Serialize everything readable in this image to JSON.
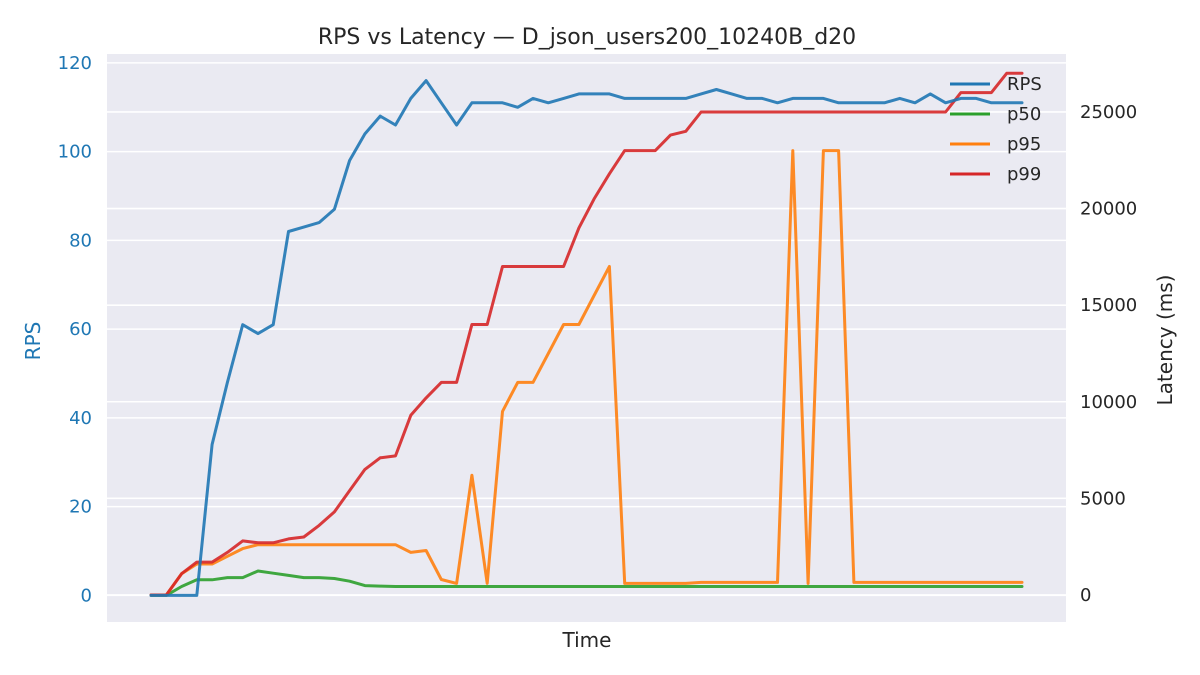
{
  "chart_data": {
    "type": "line",
    "title": "RPS vs Latency — D_json_users200_10240B_d20",
    "xlabel": "Time",
    "ylabel_left": "RPS",
    "ylabel_right": "Latency (ms)",
    "ylim_left": [
      -6,
      122
    ],
    "ylim_right": [
      -1400,
      28000
    ],
    "yticks_left": [
      0,
      20,
      40,
      60,
      80,
      100,
      120
    ],
    "yticks_right": [
      0,
      5000,
      10000,
      15000,
      20000,
      25000
    ],
    "ytick_labels_left": [
      "0",
      "20",
      "40",
      "60",
      "80",
      "100",
      "120"
    ],
    "ytick_labels_right": [
      "0",
      "5000",
      "10000",
      "15000",
      "20000",
      "25000"
    ],
    "grid": true,
    "legend_position": "top-right",
    "x": [
      0,
      1,
      2,
      3,
      4,
      5,
      6,
      7,
      8,
      9,
      10,
      11,
      12,
      13,
      14,
      15,
      16,
      17,
      18,
      19,
      20,
      21,
      22,
      23,
      24,
      25,
      26,
      27,
      28,
      29,
      30,
      31,
      32,
      33,
      34,
      35,
      36,
      37,
      38,
      39,
      40,
      41,
      42,
      43,
      44,
      45,
      46,
      47,
      48,
      49,
      50,
      51,
      52,
      53,
      54,
      55,
      56,
      57
    ],
    "series": [
      {
        "name": "RPS",
        "axis": "left",
        "color": "#1f77b4",
        "values": [
          0,
          0,
          0,
          0,
          34,
          48,
          61,
          59,
          61,
          82,
          83,
          84,
          87,
          98,
          104,
          108,
          106,
          112,
          116,
          111,
          106,
          111,
          111,
          111,
          110,
          112,
          111,
          112,
          113,
          113,
          113,
          112,
          112,
          112,
          112,
          112,
          113,
          114,
          113,
          112,
          112,
          111,
          112,
          112,
          112,
          111,
          111,
          111,
          111,
          112,
          111,
          113,
          111,
          112,
          112,
          111,
          111,
          111
        ]
      },
      {
        "name": "p50",
        "axis": "left",
        "color": "#2ca02c",
        "values": [
          0,
          0,
          2,
          3.5,
          3.5,
          4,
          4,
          5.5,
          5,
          4.5,
          4,
          4,
          3.8,
          3.2,
          2.2,
          2.1,
          2,
          2,
          2,
          2,
          2,
          2,
          2,
          2,
          2,
          2,
          2,
          2,
          2,
          2,
          2,
          2,
          2,
          2,
          2,
          2,
          2,
          2,
          2,
          2,
          2,
          2,
          2,
          2,
          2,
          2,
          2,
          2,
          2,
          2,
          2,
          2,
          2,
          2,
          2,
          2,
          2,
          2
        ]
      },
      {
        "name": "p95",
        "axis": "right",
        "color": "#ff7f0e",
        "values": [
          0,
          0,
          1100,
          1600,
          1600,
          2000,
          2400,
          2600,
          2600,
          2600,
          2600,
          2600,
          2600,
          2600,
          2600,
          2600,
          2600,
          2200,
          2300,
          800,
          600,
          6200,
          600,
          9500,
          11000,
          11000,
          12500,
          14000,
          14000,
          15500,
          17000,
          600,
          600,
          600,
          600,
          600,
          650,
          650,
          650,
          650,
          650,
          650,
          23000,
          600,
          23000,
          23000,
          650,
          650,
          650,
          650,
          650,
          650,
          650,
          650,
          650,
          650,
          650,
          650
        ]
      },
      {
        "name": "p99",
        "axis": "right",
        "color": "#d62728",
        "values": [
          0,
          0,
          1100,
          1700,
          1700,
          2200,
          2800,
          2700,
          2700,
          2900,
          3000,
          3600,
          4300,
          5400,
          6500,
          7100,
          7200,
          9300,
          10200,
          11000,
          11000,
          14000,
          14000,
          17000,
          17000,
          17000,
          17000,
          17000,
          19000,
          20500,
          21800,
          23000,
          23000,
          23000,
          23800,
          24000,
          25000,
          25000,
          25000,
          25000,
          25000,
          25000,
          25000,
          25000,
          25000,
          25000,
          25000,
          25000,
          25000,
          25000,
          25000,
          25000,
          25000,
          26000,
          26000,
          26000,
          27000,
          27000
        ]
      }
    ]
  }
}
